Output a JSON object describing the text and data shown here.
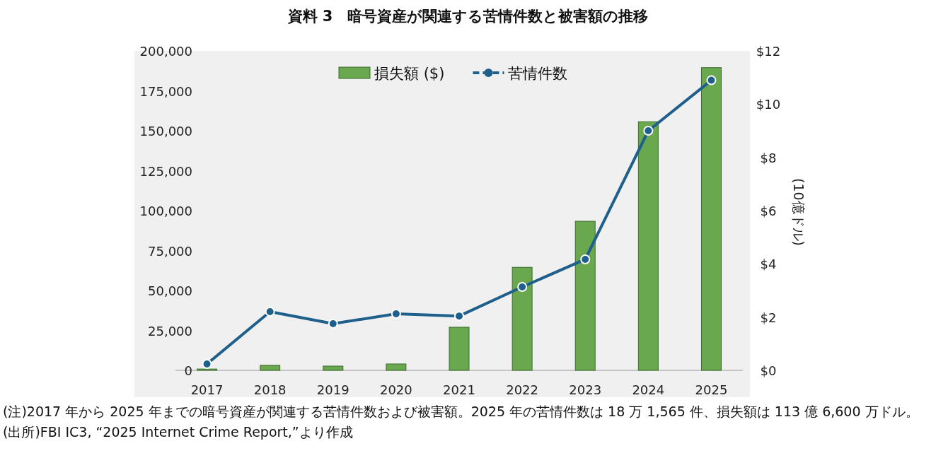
{
  "chart_data": {
    "type": "bar",
    "title": "資料 3　暗号資産が関連する苦情件数と被害額の推移",
    "categories": [
      "2017",
      "2018",
      "2019",
      "2020",
      "2021",
      "2022",
      "2023",
      "2024",
      "2025"
    ],
    "series": [
      {
        "name": "損失額 ($)",
        "axis": "y2",
        "color": "#6aa84f",
        "values": [
          0.05,
          0.19,
          0.16,
          0.24,
          1.62,
          3.87,
          5.6,
          9.34,
          11.37
        ]
      },
      {
        "name": "苦情件数",
        "type": "line",
        "color": "#1f5f8b",
        "marker": "circle",
        "values": [
          4000,
          36700,
          29200,
          35400,
          34000,
          52200,
          69500,
          150000,
          181600
        ]
      }
    ],
    "y2label": "(10億ドル)",
    "ylim": [
      0,
      200000
    ],
    "yticks": [
      0,
      {
        "value": 25000,
        "label": "25,000"
      },
      {
        "value": 50000,
        "label": "50,000"
      },
      {
        "value": 75000,
        "label": "75,000"
      },
      {
        "value": 100000,
        "label": "100,000"
      },
      {
        "value": 125000,
        "label": "125,000"
      },
      {
        "value": 150000,
        "label": "150,000"
      },
      {
        "value": 175000,
        "label": "175,000"
      },
      {
        "value": 200000,
        "label": "200,000"
      }
    ],
    "y2lim": [
      0,
      12
    ],
    "y2ticks": [
      {
        "value": 0,
        "label": "$0"
      },
      {
        "value": 2,
        "label": "$2"
      },
      {
        "value": 4,
        "label": "$4"
      },
      {
        "value": 6,
        "label": "$6"
      },
      {
        "value": 8,
        "label": "$8"
      },
      {
        "value": 10,
        "label": "$10"
      },
      {
        "value": 12,
        "label": "$12"
      }
    ],
    "legend": "top",
    "grid": false,
    "annotations": [
      "(注)2017 年から 2025 年までの暗号資産が関連する苦情件数および被害額。2025 年の苦情件数は 18 万 1,565 件、損失額は 113 億 6,600 万ドル。",
      "(出所)FBI IC3, “2025 Internet Crime Report,”より作成"
    ]
  }
}
